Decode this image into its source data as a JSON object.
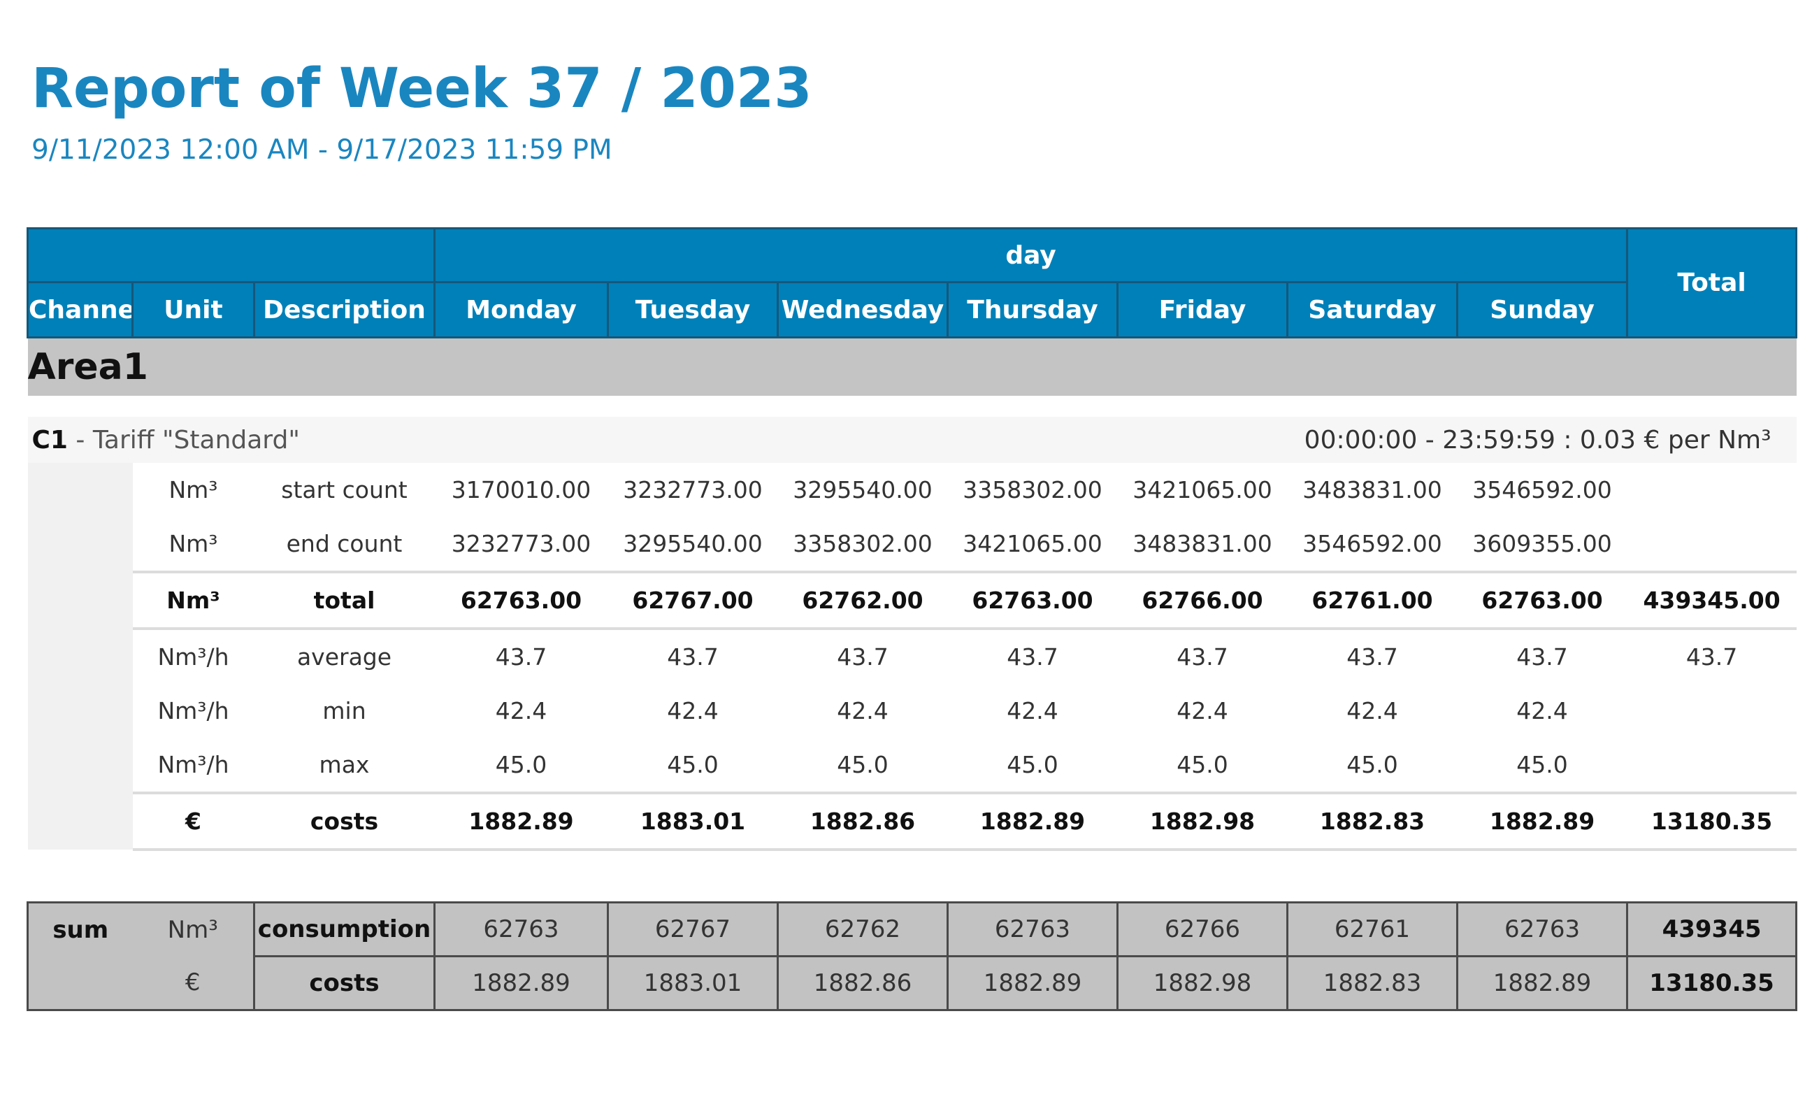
{
  "report": {
    "title": "Report of Week 37 / 2023",
    "period": "9/11/2023 12:00 AM - 9/17/2023 11:59 PM"
  },
  "table": {
    "group_header": "day",
    "columns": {
      "channel": "Channel",
      "unit": "Unit",
      "description": "Description",
      "total": "Total"
    },
    "days": [
      "Monday",
      "Tuesday",
      "Wednesday",
      "Thursday",
      "Friday",
      "Saturday",
      "Sunday"
    ]
  },
  "area": {
    "name": "Area1"
  },
  "channel": {
    "id": "C1",
    "tariff": " - Tariff \"Standard\"",
    "tariff_range": "00:00:00 - 23:59:59 : 0.03 € per Nm³",
    "rows": [
      {
        "unit": "Nm³",
        "description": "start count",
        "values": [
          "3170010.00",
          "3232773.00",
          "3295540.00",
          "3358302.00",
          "3421065.00",
          "3483831.00",
          "3546592.00"
        ],
        "total": ""
      },
      {
        "unit": "Nm³",
        "description": "end count",
        "values": [
          "3232773.00",
          "3295540.00",
          "3358302.00",
          "3421065.00",
          "3483831.00",
          "3546592.00",
          "3609355.00"
        ],
        "total": ""
      },
      {
        "unit": "Nm³",
        "description": "total",
        "values": [
          "62763.00",
          "62767.00",
          "62762.00",
          "62763.00",
          "62766.00",
          "62761.00",
          "62763.00"
        ],
        "total": "439345.00"
      },
      {
        "unit": "Nm³/h",
        "description": "average",
        "values": [
          "43.7",
          "43.7",
          "43.7",
          "43.7",
          "43.7",
          "43.7",
          "43.7"
        ],
        "total": "43.7"
      },
      {
        "unit": "Nm³/h",
        "description": "min",
        "values": [
          "42.4",
          "42.4",
          "42.4",
          "42.4",
          "42.4",
          "42.4",
          "42.4"
        ],
        "total": ""
      },
      {
        "unit": "Nm³/h",
        "description": "max",
        "values": [
          "45.0",
          "45.0",
          "45.0",
          "45.0",
          "45.0",
          "45.0",
          "45.0"
        ],
        "total": ""
      },
      {
        "unit": "€",
        "description": "costs",
        "values": [
          "1882.89",
          "1883.01",
          "1882.86",
          "1882.89",
          "1882.98",
          "1882.83",
          "1882.89"
        ],
        "total": "13180.35"
      }
    ]
  },
  "sum": {
    "label": "sum",
    "rows": [
      {
        "unit": "Nm³",
        "description": "consumption",
        "values": [
          "62763",
          "62767",
          "62762",
          "62763",
          "62766",
          "62761",
          "62763"
        ],
        "total": "439345"
      },
      {
        "unit": "€",
        "description": "costs",
        "values": [
          "1882.89",
          "1883.01",
          "1882.86",
          "1882.89",
          "1882.98",
          "1882.83",
          "1882.89"
        ],
        "total": "13180.35"
      }
    ]
  }
}
